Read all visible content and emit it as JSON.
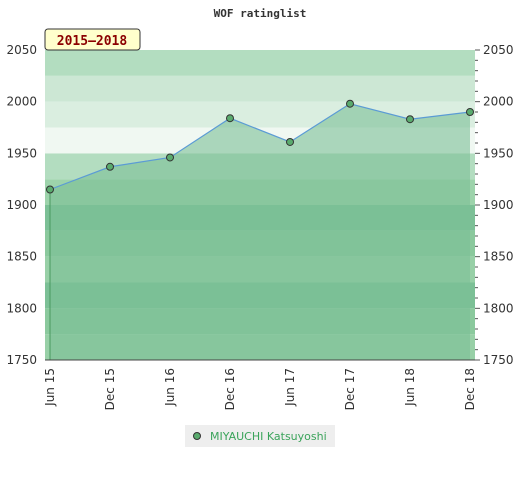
{
  "chart_data": {
    "type": "area",
    "title": "WOF ratinglist",
    "period_label": "2015–2018",
    "x": [
      "Jun 15",
      "Dec 15",
      "Jun 16",
      "Dec 16",
      "Jun 17",
      "Dec 17",
      "Jun 18",
      "Dec 18"
    ],
    "series": [
      {
        "name": "MIYAUCHI Katsuyoshi",
        "values": [
          1915,
          1937,
          1946,
          1984,
          1961,
          1998,
          1983,
          1990
        ]
      }
    ],
    "ylim": [
      1750,
      2050
    ],
    "yticks": [
      1750,
      1800,
      1850,
      1900,
      1950,
      2000,
      2050
    ],
    "secondary_yaxis": true,
    "grid": "horizontal bands",
    "legend_position": "bottom",
    "colors": {
      "line": "#5b9bd5",
      "fill": "#7cc096",
      "marker": "#5aab6e",
      "legend_text": "#3aa35a",
      "badge_bg": "#ffffcc",
      "badge_text": "#8b0000"
    }
  }
}
